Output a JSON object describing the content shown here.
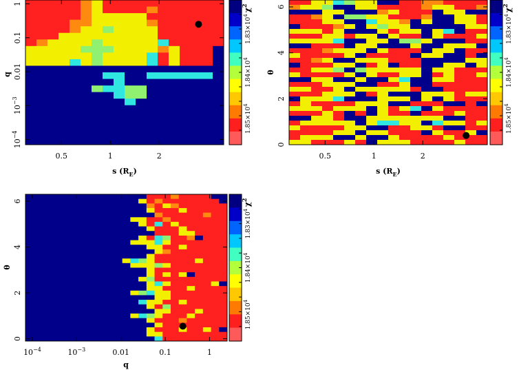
{
  "chart_data": [
    {
      "type": "heatmap",
      "panel": "s-q",
      "xlabel": "s (R_E)",
      "ylabel": "q",
      "x_scale": "log",
      "y_scale": "log",
      "xlim": [
        0.3,
        5.0
      ],
      "ylim": [
        7e-05,
        1.3
      ],
      "x_ticks": [
        {
          "v": 0.5,
          "t": "0.5"
        },
        {
          "v": 1,
          "t": "1"
        },
        {
          "v": 2,
          "t": "2"
        }
      ],
      "y_ticks": [
        {
          "v": 1,
          "t": "1"
        },
        {
          "v": 0.1,
          "t": "0.1"
        },
        {
          "v": 0.01,
          "t": "0.01"
        },
        {
          "v": 0.001,
          "t": "10"
        },
        {
          "v": 0.0001,
          "t": "10"
        }
      ],
      "y_tick_sup": [
        "",
        "",
        "",
        "−3",
        "−4"
      ],
      "colorbar": {
        "label": "χ",
        "label_sup": "2",
        "ticks": [
          "1.85×10",
          "1.84×10",
          "1.83×10"
        ],
        "tick_sup": "4"
      },
      "best_fit_marker": {
        "x": 3.5,
        "y": 0.25
      },
      "grid": [
        "RRRRROYRRRRRRRRRRR",
        "RRRRROYRRRRORRRRRR",
        "RRRRROYYYYYRRRRRRR",
        "RRRROOYYYYYORRRRRR",
        "RRRROYYGYYYYRRRRRR",
        "RRRYYYYYYYYYRRRRRR",
        "ROYYYYGYYYYYCRRRRR",
        "YYYYYGGGYYYYOYRRRB",
        "YYYYYYGYYYYCRYRRRB",
        "YYYYCYGYYYYCRYRRRB",
        "BBBBBBBBBBBBBBBBBB",
        "BBBBBBBCCBBCCCCCCB",
        "BBBBBBBBCBBBBBBBBB",
        "BBBBBBGCCGGBBBBBBB",
        "BBBBBBBBCGGBBBBBBB",
        "BBBBBBBBBCBBBBBBBB",
        "BBBBBBBBBBBBBBBBBB",
        "BBBBBBBBBBBBBBBBBB",
        "BBBBBBBBBBBBBBBBBB",
        "BBBBBBBBBBBBBBBBBB",
        "BBBBBBBBBBBBBBBBBB",
        "BBBBBBBBBBBBBBBBBB"
      ]
    },
    {
      "type": "heatmap",
      "panel": "s-theta",
      "xlabel": "s (R_E)",
      "ylabel": "θ",
      "x_scale": "log",
      "y_scale": "linear",
      "xlim": [
        0.3,
        5.0
      ],
      "ylim": [
        0,
        6.3
      ],
      "x_ticks": [
        {
          "v": 0.5,
          "t": "0.5"
        },
        {
          "v": 1,
          "t": "1"
        },
        {
          "v": 2,
          "t": "2"
        }
      ],
      "y_ticks": [
        {
          "v": 0,
          "t": "0"
        },
        {
          "v": 2,
          "t": "2"
        },
        {
          "v": 4,
          "t": "4"
        },
        {
          "v": 6,
          "t": "6"
        }
      ],
      "colorbar": {
        "label": "χ",
        "label_sup": "2",
        "ticks": [
          "1.85×10",
          "1.84×10",
          "1.83×10"
        ],
        "tick_sup": "4"
      },
      "best_fit_marker": {
        "x": 3.7,
        "y": 0.4
      },
      "grid": [
        "RRYYCGYYBBRROORRRR",
        "OYYGBBYYRRRROYYRRO",
        "BBBYYBBBOYRRRBYYBB",
        "RROYBGGYYRRROBBYYR",
        "RRRYYBBCYYOBYBBYYR",
        "BRRROYBYGYYBBBBBYY",
        "YYYRYBBBYRYYBYCBRR",
        "RRRYYRYYBYRRBYRRRY",
        "YYYYCBBYYBGGYBBBRR",
        "BBRRRBYYBBBYBBYYYB",
        "RRROYYYBYRRRBYYBRR",
        "YRRRRYBRRRRBYYBBRB",
        "RROYBBYYYRRRBBBBYY",
        "BRRRYYBRYBRRBBYYBY",
        "RRYYGBGYYYYYBYYRRR",
        "YRRRRYBYRRYYBRYRRY",
        "BBYYBBYBBYCBBYYRRR",
        "RRRYYYBBRRYBBRRRRR",
        "YYRRYBYYYYYRBBRRRR",
        "RRRYYYBRYBBBYYYRYY",
        "BYYYCBBBYYYBYBYRRR",
        "RYRRRRYYYBBRRRBBRB",
        "YYYRYYYBYRYCBYRRRR",
        "RRRYRBRBYRRBRRRYRR",
        "BBYYRBBYYYYYYYBBRR",
        "RYYYYYBYCCYYBCYYRY",
        "YRRRRYYBBRRYYRBBRR",
        "RRRRYYBYYRRRBYRRYB",
        "RYYYBBYBBYRRRRYRRR",
        "YYRRRYRBYYYRRRRYRR"
      ]
    },
    {
      "type": "heatmap",
      "panel": "q-theta",
      "xlabel": "q",
      "ylabel": "θ",
      "x_scale": "log",
      "y_scale": "linear",
      "xlim": [
        7e-05,
        2.5
      ],
      "ylim": [
        -0.1,
        6.3
      ],
      "x_ticks": [
        {
          "v": 0.0001,
          "t": "10"
        },
        {
          "v": 0.001,
          "t": "10"
        },
        {
          "v": 0.01,
          "t": "0.01"
        },
        {
          "v": 0.1,
          "t": "0.1"
        },
        {
          "v": 1,
          "t": "1"
        }
      ],
      "x_tick_sup": [
        "−4",
        "−3",
        "",
        "",
        ""
      ],
      "y_ticks": [
        {
          "v": 0,
          "t": "0"
        },
        {
          "v": 2,
          "t": "2"
        },
        {
          "v": 4,
          "t": "4"
        },
        {
          "v": 6,
          "t": "6"
        }
      ],
      "colorbar": {
        "label": "χ",
        "label_sup": "2",
        "ticks": [
          "1.85×10",
          "1.84×10",
          "1.83×10"
        ],
        "tick_sup": "4"
      },
      "best_fit_marker": {
        "x": 0.25,
        "y": 0.55
      },
      "grid": [
        "BBBBBBBBBBBBBBBRRRORRRRBB",
        "BBBBBBBBBBBBBBYRORRRRRRRB",
        "BBBBBBBBBBBBBBBORYORRRRRR",
        "BBBBBBBBBBBBBBBYRRRYRRRRR",
        "BBBBBBBBBBBBBBBBORRRRRORR",
        "BBBBBBBBBBBBBYYRRORRRRRRR",
        "BBBBBBBBBBBBBBYRCRYRRRRRR",
        "BBBBBBBBBBBBBBBYRRRYRRRRR",
        "BBBBBBBBBBBBBBBBRRRYYRRRR",
        "BBBBBBBBBBBBBBYRCGRROBRRR",
        "BBBBBBBBBBBBBYYYCYRRRRRRR",
        "BBBBBBBBBBBBBBBYYRRYRRRRR",
        "BBBBBBBBBBBBBBBBYORRRRRRR",
        "BBBBBBBBBBBBBBBYRRRRRRRRR",
        "BBBBBBBBBBBBYCGYRRRRRYRRR",
        "BBBBBBBBBBBBBYYYGYRRRRRRR",
        "BBBBBBBBBBBBBBBYRRRRRRRRR",
        "BBBBBBBBBBBBBBBYRYRYBRRRR",
        "BBBBBBBBBBBBBBYGRRRRRRRRR",
        "BBBBBBBBBBBBBBBYCYRRRRRYB",
        "BBBBBBBBBBBBBBBYYRRRYRRRR",
        "BBBBBBBBBBBBBYGCYYRRRRRRR",
        "BBBBBBBBBBBBBBBBYYRRRRRRR",
        "BBBBBBBBBBBBBBCYYRRYRRRRR",
        "BBBBBBBBBBBBBBBYRGRRRRRRR",
        "BBBBBBBBBBBBBBBBYYRRRYRRR",
        "BBBBBBBBBBBBBYCGYRRRYRRRR",
        "BBBBBBBBBBBBBBBYRRRORRRRR",
        "BBBBBBBBBBBBBBBBYRRRRRRRR",
        "BBBBBBBBBBBBBBBYRRRYRRYRB",
        "BBBBBBBBBBBBBBBYYRRRRRRRR",
        "BBBBBBBBBBBBBBBBCRRRRRRRR"
      ]
    }
  ],
  "palette": {
    "R": "#ff2020",
    "O": "#ff8a10",
    "Y": "#f2f000",
    "G": "#90f070",
    "C": "#30e6e0",
    "B": "#00008a"
  },
  "colorbar_stops": [
    "#ff5a5a",
    "#ff1f1f",
    "#ff7a00",
    "#ffc800",
    "#ffff00",
    "#b4ff3c",
    "#40ffc0",
    "#00c8ff",
    "#0064ff",
    "#0000c8",
    "#000080"
  ]
}
